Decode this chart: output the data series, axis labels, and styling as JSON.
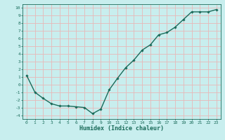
{
  "x": [
    0,
    1,
    2,
    3,
    4,
    5,
    6,
    7,
    8,
    9,
    10,
    11,
    12,
    13,
    14,
    15,
    16,
    17,
    18,
    19,
    20,
    21,
    22,
    23
  ],
  "y": [
    1.2,
    -1.0,
    -1.8,
    -2.5,
    -2.8,
    -2.8,
    -2.9,
    -3.0,
    -3.8,
    -3.2,
    -0.7,
    0.8,
    2.2,
    3.2,
    4.5,
    5.2,
    6.5,
    6.8,
    7.5,
    8.5,
    9.5,
    9.5,
    9.5,
    9.8
  ],
  "line_color": "#1a6b5a",
  "marker": "D",
  "marker_size": 1.8,
  "bg_color": "#c8eeee",
  "grid_color": "#e8b8b8",
  "tick_color": "#1a6b5a",
  "xlabel": "Humidex (Indice chaleur)",
  "xlabel_fontsize": 6,
  "ylabel_ticks": [
    "-4",
    "-3",
    "-2",
    "-1",
    "0",
    "1",
    "2",
    "3",
    "4",
    "5",
    "6",
    "7",
    "8",
    "9",
    "10"
  ],
  "ytick_vals": [
    -4,
    -3,
    -2,
    -1,
    0,
    1,
    2,
    3,
    4,
    5,
    6,
    7,
    8,
    9,
    10
  ],
  "xtick_vals": [
    0,
    1,
    2,
    3,
    4,
    5,
    6,
    7,
    8,
    9,
    10,
    11,
    12,
    13,
    14,
    15,
    16,
    17,
    18,
    19,
    20,
    21,
    22,
    23
  ],
  "xlim": [
    -0.5,
    23.5
  ],
  "ylim": [
    -4.5,
    10.5
  ],
  "tick_fontsize": 4.5,
  "linewidth": 1.0
}
